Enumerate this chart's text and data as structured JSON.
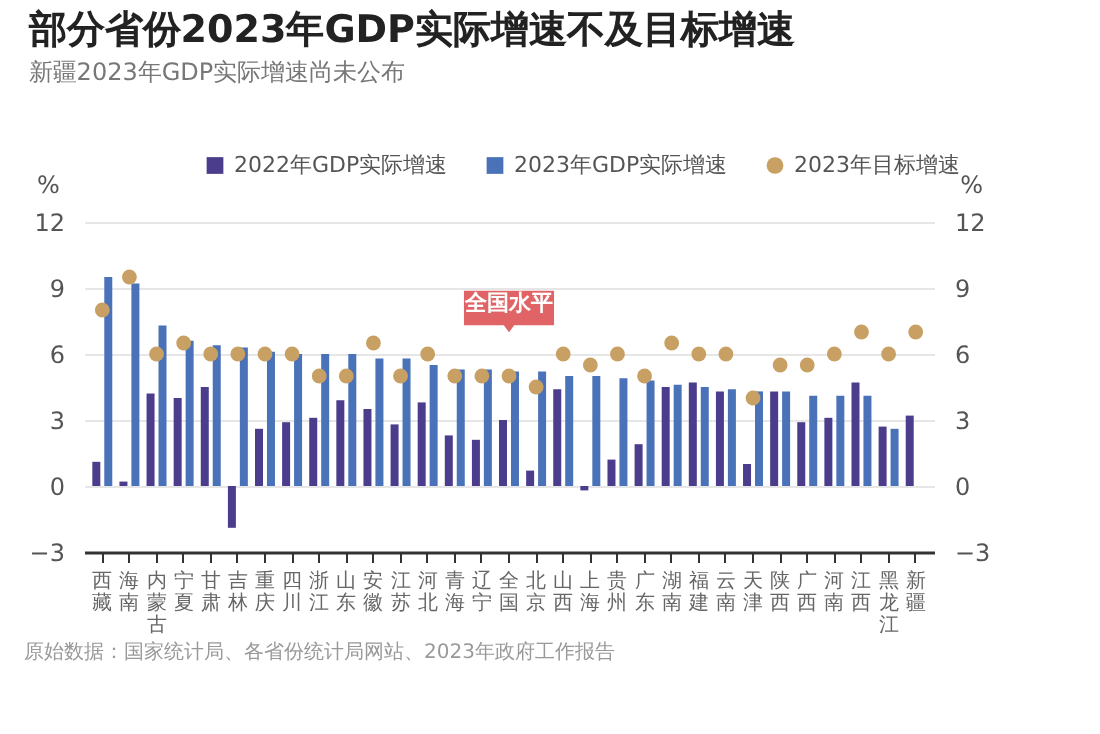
{
  "chart_data": {
    "type": "bar",
    "title": "部分省份2023年GDP实际增速不及目标增速",
    "subtitle": "新疆2023年GDP实际增速尚未公布",
    "ylabel": "%",
    "y2label": "%",
    "categories": [
      "西藏",
      "海南",
      "内蒙古",
      "宁夏",
      "甘肃",
      "吉林",
      "重庆",
      "四川",
      "浙江",
      "山东",
      "安徽",
      "江苏",
      "河北",
      "青海",
      "辽宁",
      "全国",
      "北京",
      "山西",
      "上海",
      "贵州",
      "广东",
      "湖南",
      "福建",
      "云南",
      "天津",
      "陕西",
      "广西",
      "河南",
      "江西",
      "黑龙江",
      "新疆"
    ],
    "series": [
      {
        "name": "2022年GDP实际增速",
        "color": "#4b3c8c",
        "values": [
          1.1,
          0.2,
          4.2,
          4.0,
          4.5,
          -1.9,
          2.6,
          2.9,
          3.1,
          3.9,
          3.5,
          2.8,
          3.8,
          2.3,
          2.1,
          3.0,
          0.7,
          4.4,
          -0.2,
          1.2,
          1.9,
          4.5,
          4.7,
          4.3,
          1.0,
          4.3,
          2.9,
          3.1,
          4.7,
          2.7,
          3.2
        ]
      },
      {
        "name": "2023年GDP实际增速",
        "color": "#4a72b8",
        "values": [
          9.5,
          9.2,
          7.3,
          6.6,
          6.4,
          6.3,
          6.1,
          6.0,
          6.0,
          6.0,
          5.8,
          5.8,
          5.5,
          5.3,
          5.3,
          5.2,
          5.2,
          5.0,
          5.0,
          4.9,
          4.8,
          4.6,
          4.5,
          4.4,
          4.3,
          4.3,
          4.1,
          4.1,
          4.1,
          2.6,
          null
        ]
      },
      {
        "name": "2023年目标增速",
        "type": "scatter",
        "color": "#c9a063",
        "values": [
          8,
          9.5,
          6,
          6.5,
          6,
          6,
          6,
          6,
          5,
          5,
          6.5,
          5,
          6,
          5,
          5,
          5,
          4.5,
          6,
          5.5,
          6,
          5,
          6.5,
          6,
          6,
          4,
          5.5,
          5.5,
          6,
          7,
          6,
          7
        ]
      }
    ],
    "ylim": [
      -3,
      12
    ],
    "yticks": [
      -3,
      0,
      3,
      6,
      9,
      12
    ],
    "y2lim": [
      -3,
      12
    ],
    "y2ticks": [
      -3,
      0,
      3,
      6,
      9,
      12
    ],
    "grid": "y",
    "legend": "top",
    "marker": "circle",
    "annotations": [
      {
        "text": "全国水平",
        "x": "全国",
        "y": 5
      },
      "原始数据：国家统计局、各省份统计局网站、2023年政府工作报告"
    ]
  }
}
